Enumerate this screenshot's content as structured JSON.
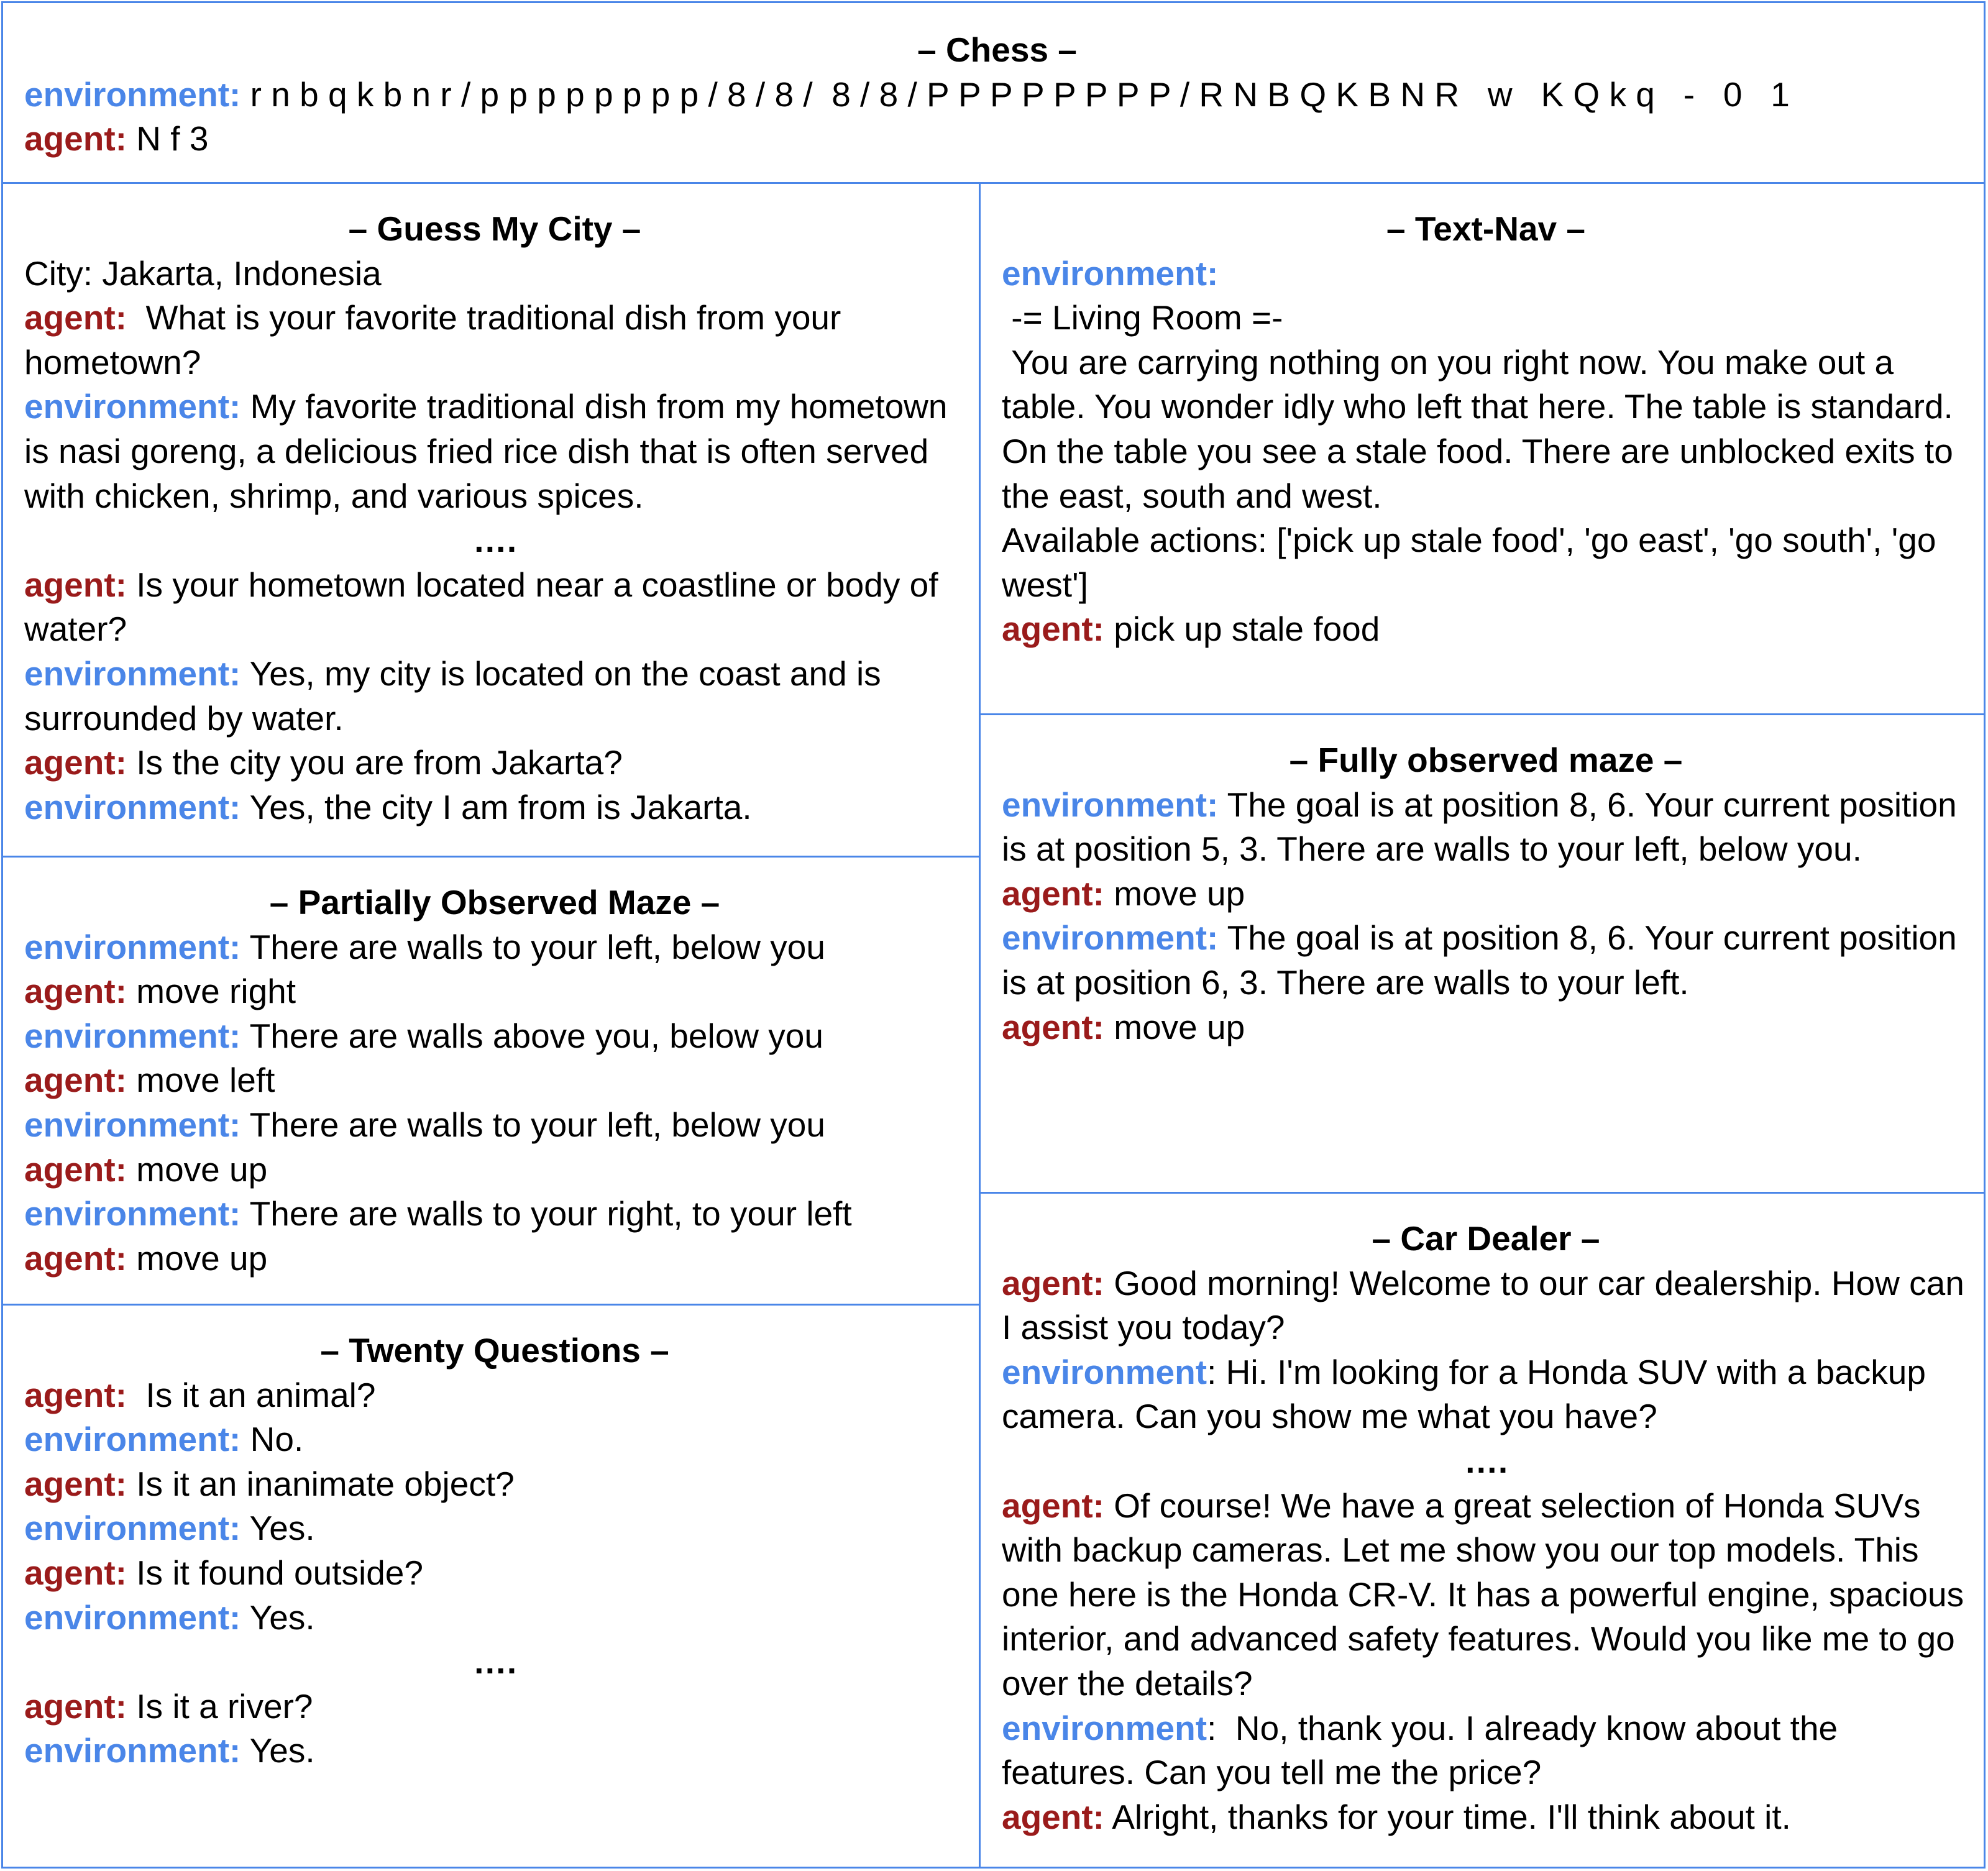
{
  "labels": {
    "environment": "environment:",
    "agent": "agent:"
  },
  "chess": {
    "title": "– Chess –",
    "environment_text": " r n b q k b n r / p p p p p p p p / 8 / 8 /  8 / 8 / P P P P P P P P / R N B Q K B N R   w   K Q k q   -   0   1",
    "agent_text": " N f 3"
  },
  "guess_my_city": {
    "title": "– Guess My City  –",
    "city_line": "City: Jakarta, Indonesia",
    "turns": [
      {
        "role": "agent",
        "text": "  What is your favorite traditional dish from your hometown?"
      },
      {
        "role": "environment",
        "text": " My favorite traditional dish from my hometown is nasi goreng, a delicious fried rice dish that is often served with chicken, shrimp, and various spices."
      }
    ],
    "ellipsis": "….",
    "turns_after": [
      {
        "role": "agent",
        "text": " Is your hometown located near a coastline or body of water?"
      },
      {
        "role": "environment",
        "text": " Yes, my city is located on the coast and is surrounded by water."
      },
      {
        "role": "agent",
        "text": " Is the city you are from Jakarta?"
      },
      {
        "role": "environment",
        "text": " Yes, the city I am from is Jakarta."
      }
    ]
  },
  "partially_observed_maze": {
    "title": "– Partially Observed Maze –",
    "turns": [
      {
        "role": "environment",
        "text": " There are walls to your left, below you"
      },
      {
        "role": "agent",
        "text": " move right"
      },
      {
        "role": "environment",
        "text": " There are walls above you, below you"
      },
      {
        "role": "agent",
        "text": " move left"
      },
      {
        "role": "environment",
        "text": " There are walls to your left, below you"
      },
      {
        "role": "agent",
        "text": " move up"
      },
      {
        "role": "environment",
        "text": " There are walls to your right, to your left"
      },
      {
        "role": "agent",
        "text": " move up"
      }
    ]
  },
  "twenty_questions": {
    "title": "– Twenty Questions –",
    "turns": [
      {
        "role": "agent",
        "text": "  Is it an animal?"
      },
      {
        "role": "environment",
        "text": " No."
      },
      {
        "role": "agent",
        "text": " Is it an inanimate object?"
      },
      {
        "role": "environment",
        "text": " Yes."
      },
      {
        "role": "agent",
        "text": " Is it found outside?"
      },
      {
        "role": "environment",
        "text": " Yes."
      }
    ],
    "ellipsis": "….",
    "turns_after": [
      {
        "role": "agent",
        "text": " Is it a river?"
      },
      {
        "role": "environment",
        "text": " Yes."
      }
    ]
  },
  "text_nav": {
    "title": "– Text-Nav –",
    "env_label": "environment:",
    "room": " -= Living Room =-",
    "description": " You are carrying nothing on you right now. You make out a table. You wonder idly who left that here. The table is standard. On the table you see a stale food. There are unblocked exits to the east, south and west.",
    "actions": "Available actions: ['pick up stale food', 'go east', 'go south', 'go west']",
    "agent_text": " pick up stale food"
  },
  "fully_observed_maze": {
    "title": "– Fully observed maze –",
    "turns": [
      {
        "role": "environment",
        "text": " The goal is at position 8, 6. Your current position is at position 5, 3. There are walls to your left, below you."
      },
      {
        "role": "agent",
        "text": " move up"
      },
      {
        "role": "environment",
        "text": " The goal is at position 8, 6. Your current position is at position 6, 3. There are walls to your left."
      },
      {
        "role": "agent",
        "text": " move up"
      }
    ]
  },
  "car_dealer": {
    "title": "– Car Dealer –",
    "env_label_plain": "environment",
    "turns": [
      {
        "role": "agent",
        "text": " Good morning! Welcome to our car dealership. How can I assist you today?"
      },
      {
        "role": "environment-plain",
        "text": ": Hi. I'm looking for a Honda SUV with a backup camera. Can you show me what you have?"
      }
    ],
    "ellipsis": "….",
    "turns_after": [
      {
        "role": "agent",
        "text": " Of course! We have a great selection of Honda SUVs with backup cameras. Let me show you our top models. This one here is the Honda CR-V. It has a powerful engine, spacious interior, and advanced safety features. Would you like me to go over the details?"
      },
      {
        "role": "environment-plain",
        "text": ":  No, thank you. I already know about the features. Can you tell me the price?"
      },
      {
        "role": "agent",
        "text": " Alright, thanks for your time. I'll think about it."
      }
    ]
  },
  "colors": {
    "agent": "#9a1b1b",
    "environment": "#4a86e8",
    "border": "#4a86e8"
  }
}
